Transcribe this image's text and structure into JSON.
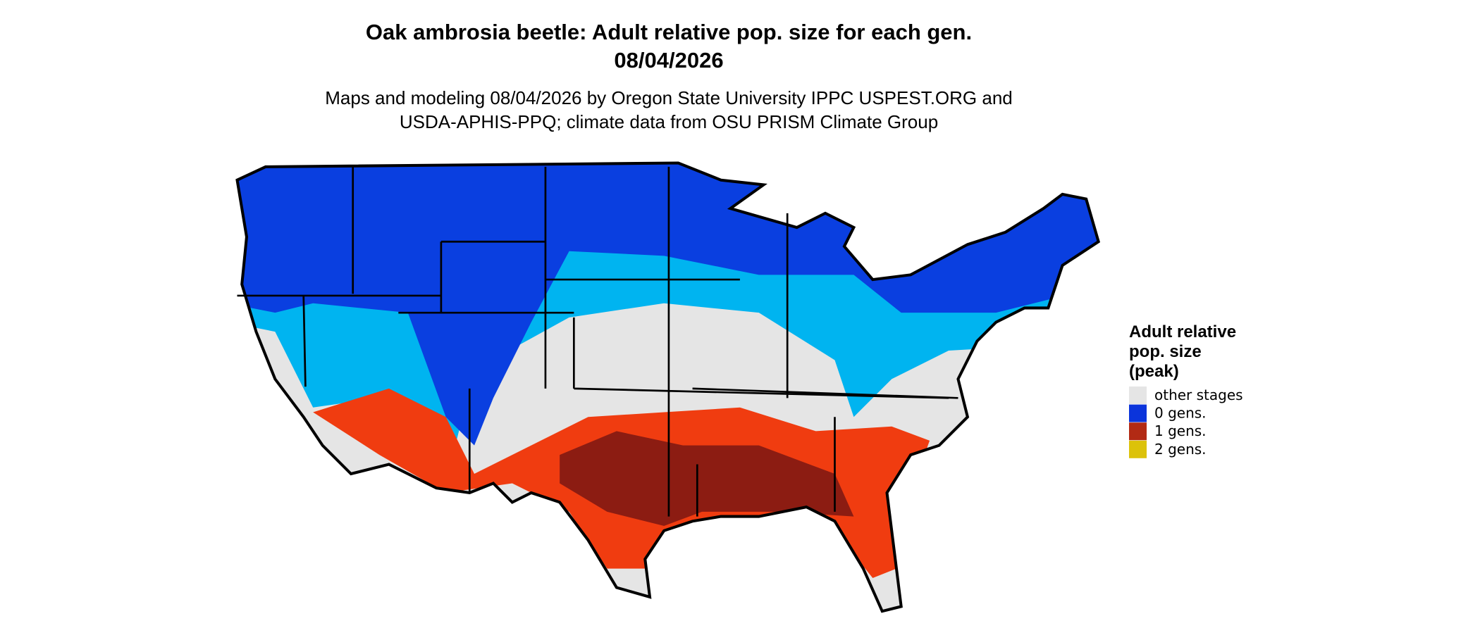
{
  "title": [
    "Oak ambrosia beetle: Adult relative pop. size for each gen.",
    "08/04/2026"
  ],
  "subtitle": [
    "Maps and modeling 08/04/2026 by Oregon State University IPPC USPEST.ORG and",
    "USDA-APHIS-PPQ; climate data from OSU PRISM Climate Group"
  ],
  "legend": {
    "title": [
      "Adult relative",
      "pop. size",
      "(peak)"
    ],
    "items": [
      {
        "label": "other stages",
        "color": "#e5e5e5"
      },
      {
        "label": "0 gens.",
        "color": "#0b34db"
      },
      {
        "label": "1 gens.",
        "color": "#b22a14"
      },
      {
        "label": "2 gens.",
        "color": "#dcc20a"
      }
    ]
  }
}
